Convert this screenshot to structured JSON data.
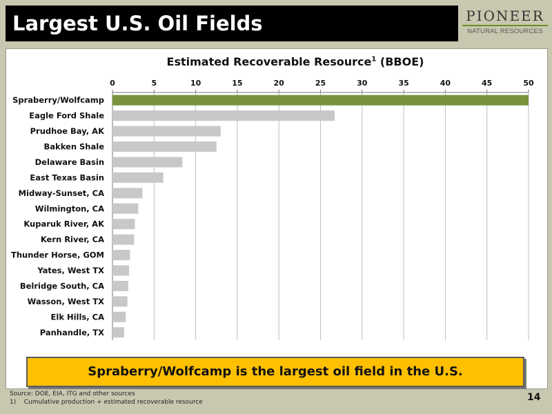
{
  "header": {
    "title": "Largest U.S. Oil Fields",
    "logo_main": "PIONEER",
    "logo_sub": "NATURAL RESOURCES"
  },
  "chart_data": {
    "type": "bar",
    "orientation": "horizontal",
    "title": "Estimated Recoverable Resource",
    "title_superscript": "1",
    "title_suffix": "(BBOE)",
    "categories": [
      "Spraberry/Wolfcamp",
      "Eagle Ford Shale",
      "Prudhoe Bay, AK",
      "Bakken Shale",
      "Delaware Basin",
      "East Texas Basin",
      "Midway-Sunset, CA",
      "Wilmington, CA",
      "Kuparuk River, AK",
      "Kern River, CA",
      "Thunder Horse, GOM",
      "Yates, West TX",
      "Belridge South, CA",
      "Wasson, West TX",
      "Elk Hills, CA",
      "Panhandle, TX"
    ],
    "values": [
      50,
      26.7,
      13,
      12.5,
      8.4,
      6.1,
      3.6,
      3.1,
      2.7,
      2.6,
      2.1,
      2.0,
      1.9,
      1.8,
      1.6,
      1.4
    ],
    "highlight_index": 0,
    "colors": {
      "highlight": "#77933c",
      "default": "#c8c8c8"
    },
    "xlim": [
      0,
      50
    ],
    "xticks": [
      0,
      5,
      10,
      15,
      20,
      25,
      30,
      35,
      40,
      45,
      50
    ],
    "x_axis_position": "top",
    "grid": true
  },
  "banner": {
    "text": "Spraberry/Wolfcamp is the largest oil field in the U.S."
  },
  "footnotes": {
    "source": "Source: DOE, EIA, ITG and other sources",
    "note_marker": "1)",
    "note": "Cumulative production + estimated recoverable resource"
  },
  "page_number": "14"
}
